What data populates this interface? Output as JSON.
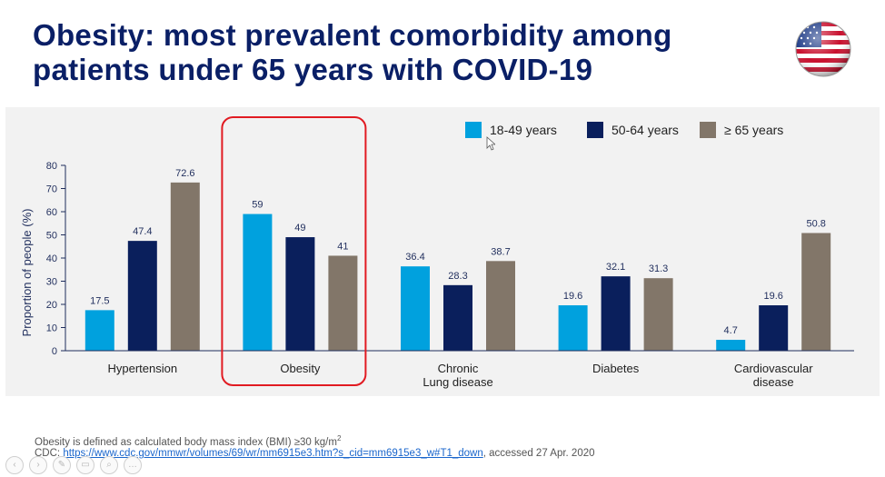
{
  "title": {
    "line1": "Obesity: most prevalent comorbidity among",
    "line2": "patients under 65 years with COVID-19"
  },
  "flag_icon": "us-flag-icon",
  "colors": {
    "title": "#0a1f66",
    "series1": "#00a1de",
    "series2": "#0a1f5c",
    "series3": "#827669",
    "highlight": "#e11b22",
    "axis": "#1f2d5c"
  },
  "chart_data": {
    "type": "bar",
    "categories": [
      "Hypertension",
      "Obesity",
      "Chronic\nLung disease",
      "Diabetes",
      "Cardiovascular\ndisease"
    ],
    "series": [
      {
        "name": "18-49 years",
        "values": [
          17.5,
          59,
          36.4,
          19.6,
          4.7
        ],
        "labels": [
          "17.5",
          "59",
          "36.4",
          "19.6",
          "4.7"
        ]
      },
      {
        "name": "50-64 years",
        "values": [
          47.4,
          49,
          28.3,
          32.1,
          19.6
        ],
        "labels": [
          "47.4",
          "49",
          "28.3",
          "32.1",
          "19.6"
        ]
      },
      {
        "name": "≥ 65 years",
        "values": [
          72.6,
          41,
          38.7,
          31.3,
          50.8
        ],
        "labels": [
          "72.6",
          "41",
          "38.7",
          "31.3",
          "50.8"
        ]
      }
    ],
    "yticks": [
      "0",
      "10",
      "20",
      "30",
      "40",
      "50",
      "60",
      "70",
      "80"
    ],
    "ylim": [
      0,
      80
    ],
    "ylabel": "Proportion of people (%)",
    "xlabel": "",
    "legend_position": "top-right",
    "highlighted_category": "Obesity"
  },
  "footnote": {
    "text": "Obesity is defined as calculated body mass index (BMI) ≥30 kg/m",
    "superscript": "2"
  },
  "source": {
    "prefix": "CDC: ",
    "link": "https://www.cdc.gov/mmwr/volumes/69/wr/mm6915e3.htm?s_cid=mm6915e3_w#T1_down",
    "suffix": ", accessed 27 Apr. 2020"
  },
  "controls": [
    {
      "icon": "back-icon",
      "glyph": "‹"
    },
    {
      "icon": "forward-icon",
      "glyph": "›"
    },
    {
      "icon": "pen-icon",
      "glyph": "✎"
    },
    {
      "icon": "slides-icon",
      "glyph": "▭"
    },
    {
      "icon": "zoom-icon",
      "glyph": "⌕"
    },
    {
      "icon": "more-icon",
      "glyph": "…"
    }
  ]
}
